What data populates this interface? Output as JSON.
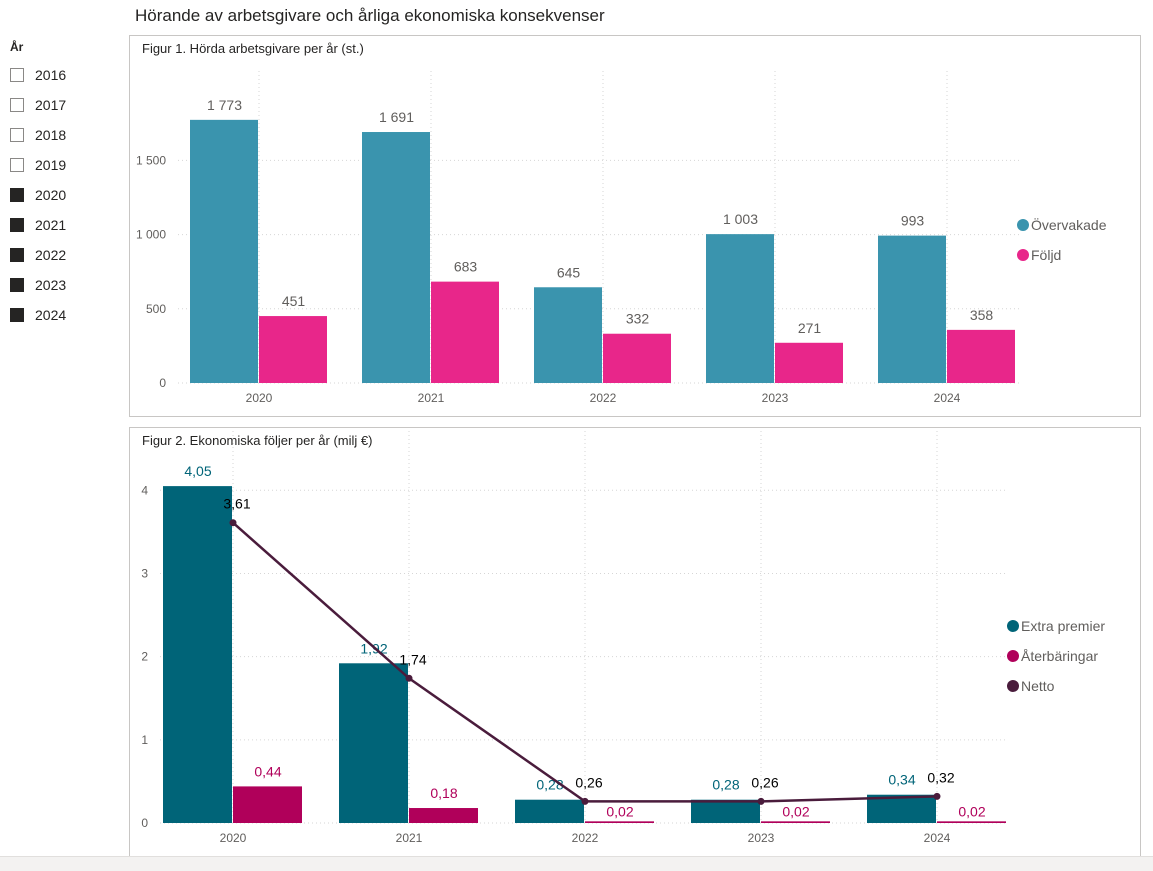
{
  "page": {
    "title": "Hörande av arbetsgivare och årliga ekonomiska konsekvenser"
  },
  "slicer": {
    "title": "År",
    "items": [
      {
        "label": "2016",
        "checked": false
      },
      {
        "label": "2017",
        "checked": false
      },
      {
        "label": "2018",
        "checked": false
      },
      {
        "label": "2019",
        "checked": false
      },
      {
        "label": "2020",
        "checked": true
      },
      {
        "label": "2021",
        "checked": true
      },
      {
        "label": "2022",
        "checked": true
      },
      {
        "label": "2023",
        "checked": true
      },
      {
        "label": "2024",
        "checked": true
      }
    ]
  },
  "chart_data": [
    {
      "type": "bar",
      "title": "Figur 1. Hörda arbetsgivare per år (st.)",
      "categories": [
        "2020",
        "2021",
        "2022",
        "2023",
        "2024"
      ],
      "series": [
        {
          "name": "Övervakade",
          "color": "#3a94ae",
          "values": [
            1773,
            1691,
            645,
            1003,
            993
          ],
          "labels": [
            "1 773",
            "1 691",
            "645",
            "1 003",
            "993"
          ]
        },
        {
          "name": "Följd",
          "color": "#e8268a",
          "values": [
            451,
            683,
            332,
            271,
            358
          ],
          "labels": [
            "451",
            "683",
            "332",
            "271",
            "358"
          ]
        }
      ],
      "yticks": [
        0,
        500,
        1000,
        1500
      ],
      "ytick_labels": [
        "0",
        "500",
        "1 000",
        "1 500"
      ],
      "ylim": [
        0,
        1900
      ],
      "xlabel": "",
      "ylabel": "",
      "grid": true,
      "legend_position": "right",
      "label_color": "#605e5c"
    },
    {
      "type": "bar",
      "title": "Figur 2. Ekonomiska följer per år (milj €)",
      "categories": [
        "2020",
        "2021",
        "2022",
        "2023",
        "2024"
      ],
      "series": [
        {
          "name": "Extra premier",
          "kind": "bar",
          "color": "#006478",
          "values": [
            4.05,
            1.92,
            0.28,
            0.28,
            0.34
          ],
          "labels": [
            "4,05",
            "1,92",
            "0,28",
            "0,28",
            "0,34"
          ],
          "label_color": "#006478"
        },
        {
          "name": "Återbäringar",
          "kind": "bar",
          "color": "#b0005a",
          "values": [
            0.44,
            0.18,
            0.02,
            0.02,
            0.02
          ],
          "labels": [
            "0,44",
            "0,18",
            "0,02",
            "0,02",
            "0,02"
          ],
          "label_color": "#b0005a"
        },
        {
          "name": "Netto",
          "kind": "line",
          "color": "#4a1c3c",
          "values": [
            3.61,
            1.74,
            0.26,
            0.26,
            0.32
          ],
          "labels": [
            "3,61",
            "1,74",
            "0,26",
            "0,26",
            "0,32"
          ],
          "label_color": "#000000"
        }
      ],
      "yticks": [
        0,
        1,
        2,
        3,
        4
      ],
      "ytick_labels": [
        "0",
        "1",
        "2",
        "3",
        "4"
      ],
      "ylim": [
        0,
        4.4
      ],
      "xlabel": "",
      "ylabel": "",
      "grid": true,
      "legend_position": "right"
    }
  ]
}
